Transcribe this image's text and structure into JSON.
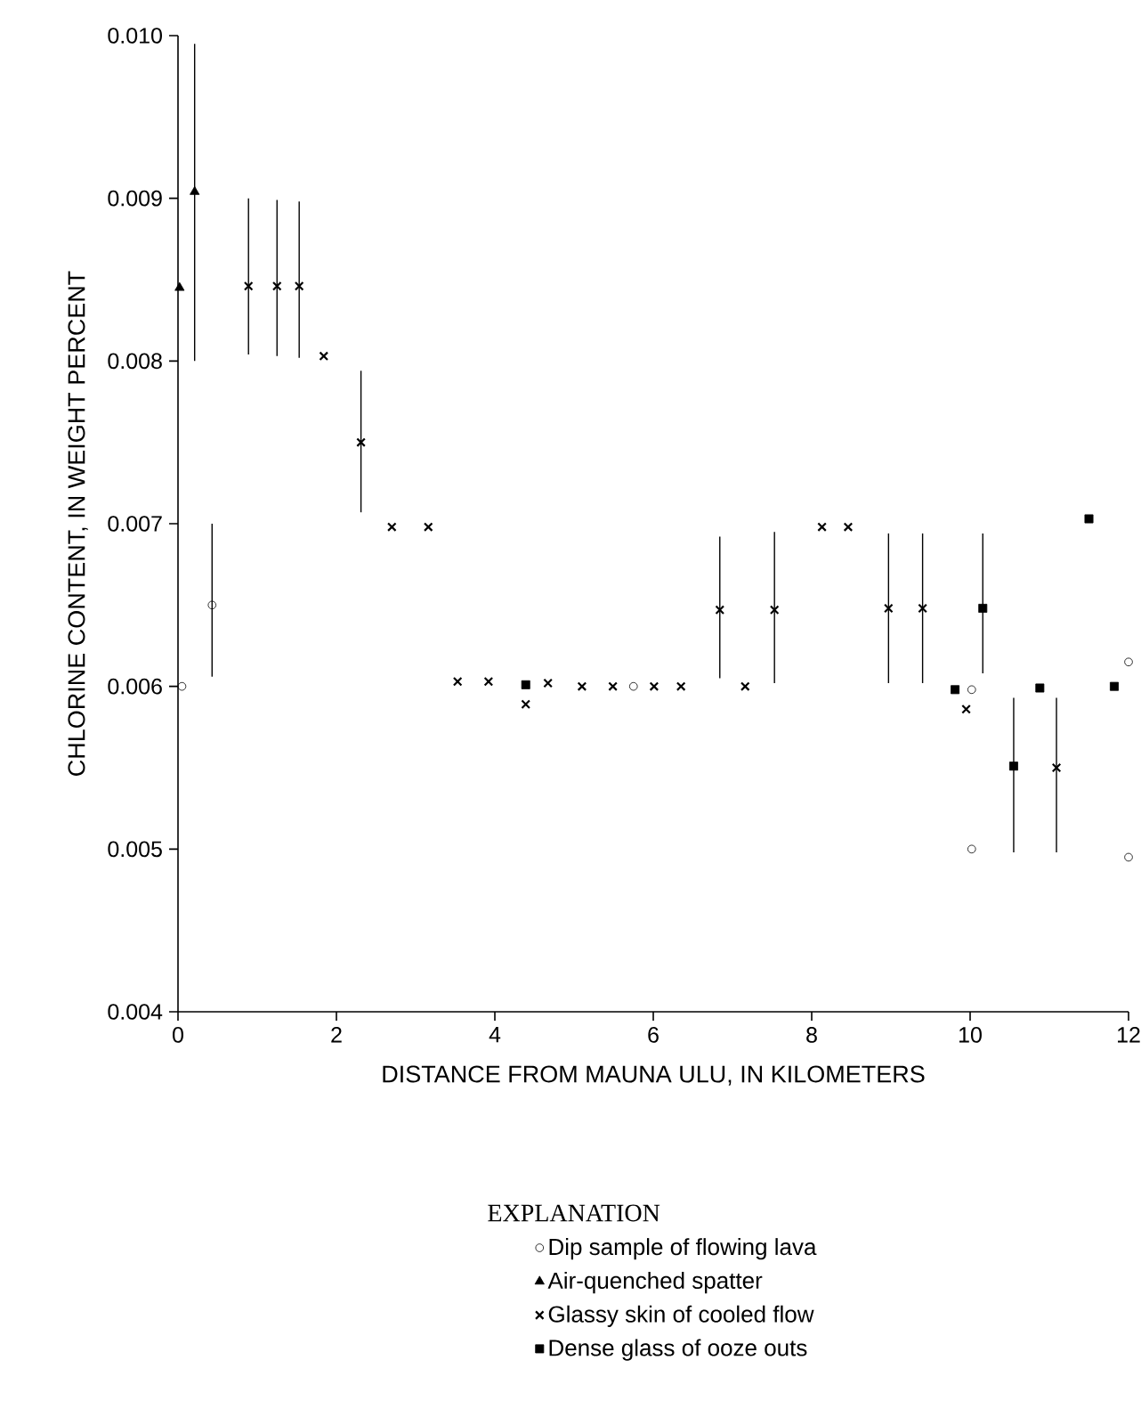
{
  "chart_data": {
    "type": "scatter",
    "xlabel": "DISTANCE FROM MAUNA ULU, IN KILOMETERS",
    "ylabel": "CHLORINE CONTENT, IN WEIGHT PERCENT",
    "legend_title": "EXPLANATION",
    "legend": "bottom",
    "grid": false,
    "xlim": [
      0,
      12
    ],
    "xticks": [
      0,
      2,
      4,
      6,
      8,
      10,
      12
    ],
    "ylim": [
      0.004,
      0.01
    ],
    "yticks": [
      0.004,
      0.005,
      0.006,
      0.007,
      0.008,
      0.009,
      {
        "value": 0.01,
        "label": "0.010"
      }
    ],
    "series": [
      {
        "name": "Dip sample of flowing lava",
        "color": "#000000",
        "marker": "circle",
        "x": [
          0.05,
          0.43,
          5.75,
          10.02,
          10.02,
          12.0,
          12.0
        ],
        "values": [
          0.006,
          0.0065,
          0.006,
          0.00598,
          0.005,
          0.00615,
          0.00495
        ],
        "errors": [
          null,
          [
            0.00606,
            0.007
          ],
          null,
          null,
          null,
          null,
          null
        ]
      },
      {
        "name": "Air-quenched spatter",
        "color": "#000000",
        "marker": "triangle",
        "x": [
          0.02,
          0.21
        ],
        "values": [
          0.00845,
          0.00904
        ],
        "errors": [
          null,
          [
            0.008,
            0.00995
          ]
        ]
      },
      {
        "name": "Glassy skin of cooled flow",
        "color": "#000000",
        "marker": "cross",
        "x": [
          0.89,
          1.25,
          1.53,
          1.84,
          2.31,
          2.7,
          3.16,
          3.53,
          3.92,
          4.39,
          4.67,
          5.1,
          5.49,
          6.01,
          6.35,
          6.84,
          7.16,
          7.53,
          8.13,
          8.46,
          8.97,
          9.4,
          9.95,
          11.09
        ],
        "values": [
          0.00846,
          0.00846,
          0.00846,
          0.00803,
          0.0075,
          0.00698,
          0.00698,
          0.00603,
          0.00603,
          0.00589,
          0.00602,
          0.006,
          0.006,
          0.006,
          0.006,
          0.00647,
          0.006,
          0.00647,
          0.00698,
          0.00698,
          0.00648,
          0.00648,
          0.00586,
          0.0055
        ],
        "errors": [
          [
            0.00804,
            0.009
          ],
          [
            0.00803,
            0.00899
          ],
          [
            0.00802,
            0.00898
          ],
          null,
          [
            0.00707,
            0.00794
          ],
          null,
          null,
          null,
          null,
          null,
          null,
          null,
          null,
          null,
          null,
          [
            0.00605,
            0.00692
          ],
          null,
          [
            0.00602,
            0.00695
          ],
          null,
          null,
          [
            0.00602,
            0.00694
          ],
          [
            0.00602,
            0.00694
          ],
          null,
          [
            0.00498,
            0.00593
          ]
        ]
      },
      {
        "name": "Dense glass of ooze outs",
        "color": "#000000",
        "marker": "square",
        "x": [
          4.39,
          9.81,
          10.16,
          10.55,
          10.88,
          11.5,
          11.82
        ],
        "values": [
          0.00601,
          0.00598,
          0.00648,
          0.00551,
          0.00599,
          0.00703,
          0.006
        ],
        "errors": [
          null,
          null,
          [
            0.00608,
            0.00694
          ],
          [
            0.00498,
            0.00593
          ],
          null,
          null,
          null
        ]
      }
    ]
  }
}
